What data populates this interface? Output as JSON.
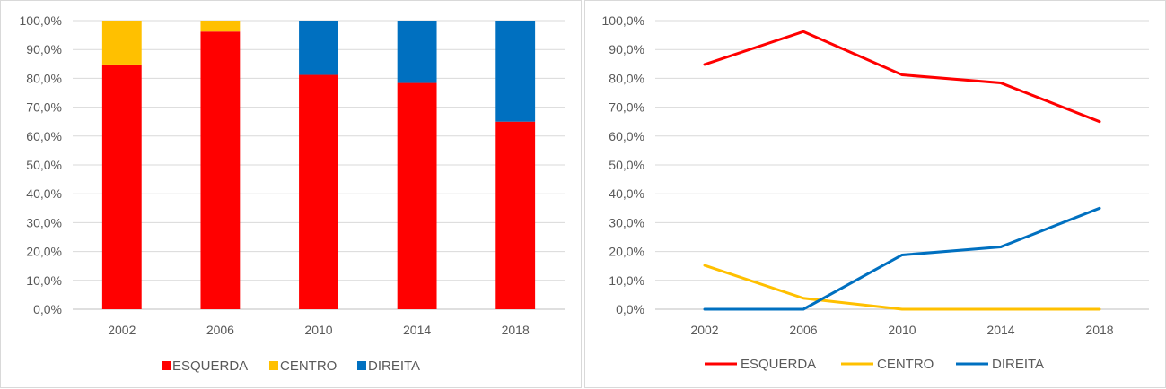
{
  "chart_data": [
    {
      "type": "bar",
      "stacked": true,
      "categories": [
        "2002",
        "2006",
        "2010",
        "2014",
        "2018"
      ],
      "series": [
        {
          "name": "ESQUERDA",
          "color": "#ff0000",
          "values": [
            84.8,
            96.2,
            81.2,
            78.4,
            65.0
          ]
        },
        {
          "name": "CENTRO",
          "color": "#ffc000",
          "values": [
            15.2,
            3.8,
            0.0,
            0.0,
            0.0
          ]
        },
        {
          "name": "DIREITA",
          "color": "#0070c0",
          "values": [
            0.0,
            0.0,
            18.8,
            21.6,
            35.0
          ]
        }
      ],
      "ylim": [
        0,
        100
      ],
      "yticks": [
        "0,0%",
        "10,0%",
        "20,0%",
        "30,0%",
        "40,0%",
        "50,0%",
        "60,0%",
        "70,0%",
        "80,0%",
        "90,0%",
        "100,0%"
      ],
      "grid": true,
      "legend": "bottom",
      "legend_marker": "square"
    },
    {
      "type": "line",
      "categories": [
        "2002",
        "2006",
        "2010",
        "2014",
        "2018"
      ],
      "series": [
        {
          "name": "ESQUERDA",
          "color": "#ff0000",
          "values": [
            84.8,
            96.2,
            81.2,
            78.4,
            65.0
          ]
        },
        {
          "name": "CENTRO",
          "color": "#ffc000",
          "values": [
            15.2,
            3.8,
            0.0,
            0.0,
            0.0
          ]
        },
        {
          "name": "DIREITA",
          "color": "#0070c0",
          "values": [
            0.0,
            0.0,
            18.8,
            21.6,
            35.0
          ]
        }
      ],
      "ylim": [
        0,
        100
      ],
      "yticks": [
        "0,0%",
        "10,0%",
        "20,0%",
        "30,0%",
        "40,0%",
        "50,0%",
        "60,0%",
        "70,0%",
        "80,0%",
        "90,0%",
        "100,0%"
      ],
      "grid": true,
      "legend": "bottom",
      "legend_marker": "line"
    }
  ]
}
